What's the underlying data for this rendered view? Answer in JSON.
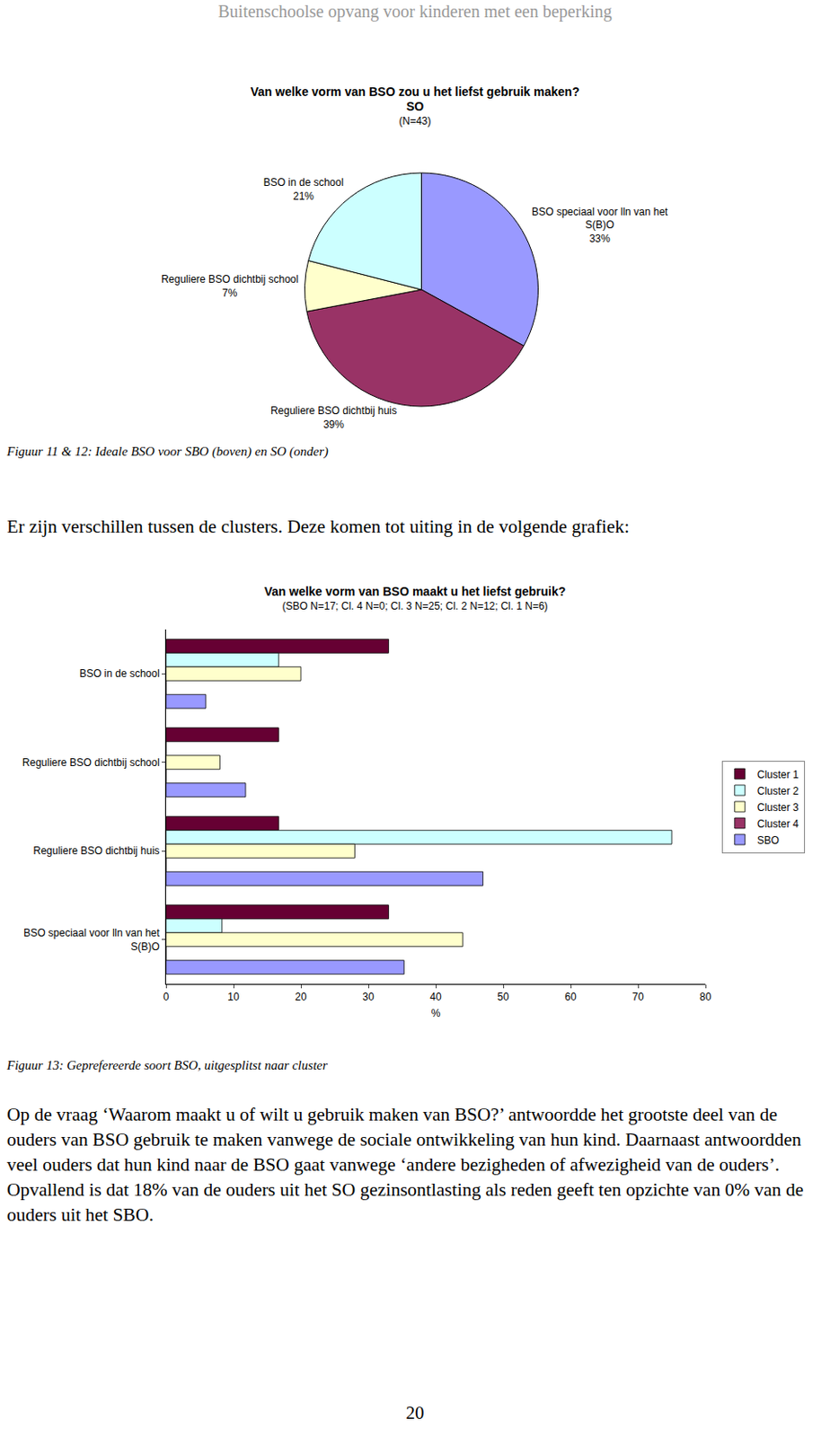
{
  "document": {
    "header": "Buitenschoolse opvang voor kinderen met een beperking",
    "caption_1": "Figuur 11 & 12: Ideale BSO voor SBO (boven) en SO (onder)",
    "paragraph_1": "Er zijn verschillen tussen de clusters. Deze komen tot uiting in de volgende grafiek:",
    "caption_2": "Figuur 13: Geprefereerde soort BSO, uitgesplitst naar cluster",
    "paragraph_2": "Op de vraag ‘Waarom maakt u of wilt u gebruik maken van BSO?’ antwoordde het grootste deel van de ouders van BSO gebruik te maken vanwege de sociale ontwikkeling van hun kind. Daarnaast antwoordden veel ouders dat hun kind naar de BSO gaat vanwege ‘andere bezigheden of afwezigheid van de ouders’. Opvallend is dat 18% van de ouders uit het SO gezinsontlasting als reden geeft ten opzichte van 0% van de ouders uit het SBO.",
    "page_number": 20
  },
  "chart_data": [
    {
      "type": "pie",
      "title": "Van welke vorm van BSO zou u het liefst gebruik maken?",
      "subtitle": "SO",
      "annotations": [
        "(N=43)"
      ],
      "categories": [
        "BSO speciaal voor lln van het S(B)O",
        "Reguliere BSO dichtbij huis",
        "Reguliere BSO dichtbij school",
        "BSO in de school"
      ],
      "values": [
        33,
        39,
        7,
        21
      ],
      "value_labels": [
        "33%",
        "39%",
        "7%",
        "21%"
      ],
      "colors": [
        "#9999ff",
        "#993366",
        "#ffffcc",
        "#ccffff"
      ],
      "data_labels": true
    },
    {
      "type": "bar",
      "title": "Van welke vorm van BSO maakt u het liefst gebruik?",
      "subtitle": "(SBO N=17; Cl. 4 N=0; Cl. 3 N=25; Cl. 2 N=12; Cl. 1 N=6)",
      "orientation": "horizontal",
      "categories": [
        "BSO in de school",
        "Reguliere BSO dichtbij school",
        "Reguliere BSO dichtbij huis",
        "BSO speciaal voor lln van het S(B)O"
      ],
      "series": [
        {
          "name": "Cluster 1",
          "color": "#660033",
          "values": [
            33,
            16.7,
            16.7,
            33
          ]
        },
        {
          "name": "Cluster 2",
          "color": "#ccffff",
          "values": [
            16.7,
            0,
            75,
            8.3
          ]
        },
        {
          "name": "Cluster 3",
          "color": "#ffffcc",
          "values": [
            20,
            8,
            28,
            44
          ]
        },
        {
          "name": "Cluster 4",
          "color": "#993366",
          "values": [
            0,
            0,
            0,
            0
          ]
        },
        {
          "name": "SBO",
          "color": "#9999ff",
          "values": [
            5.9,
            11.8,
            47,
            35.3
          ]
        }
      ],
      "xlabel": "%",
      "xlim": [
        0,
        80
      ],
      "xticks": [
        0,
        10,
        20,
        30,
        40,
        50,
        60,
        70,
        80
      ],
      "grid": false,
      "legend": "right",
      "data_labels": false
    }
  ]
}
